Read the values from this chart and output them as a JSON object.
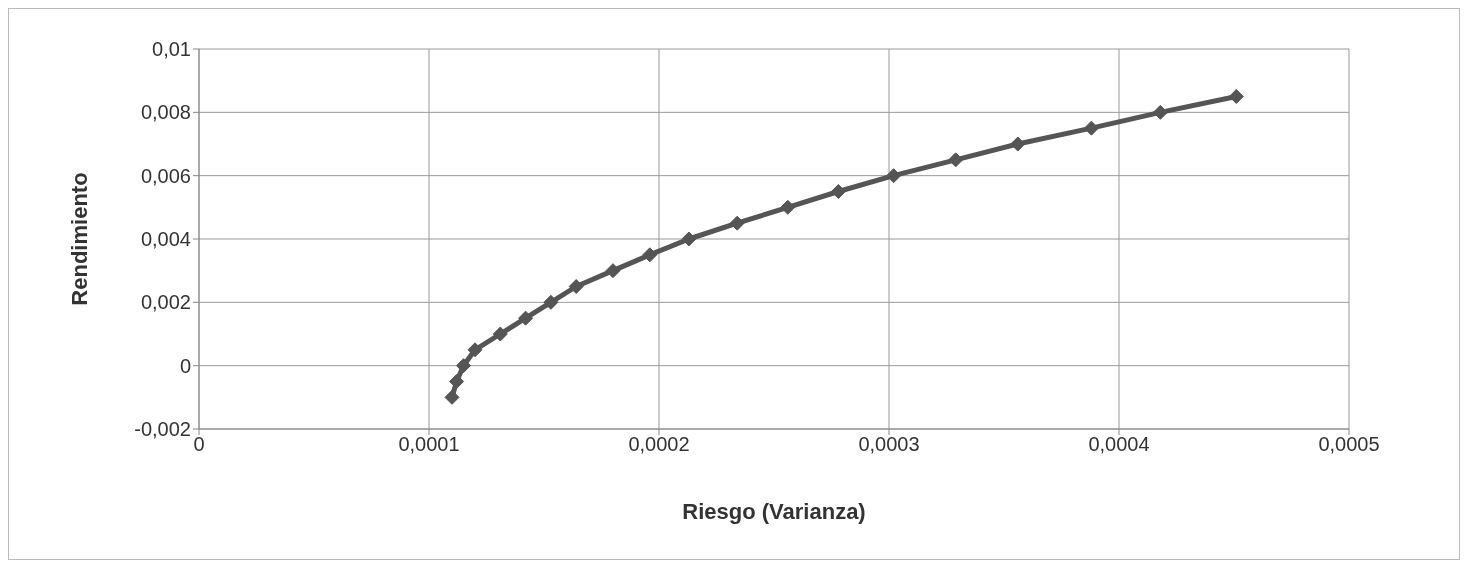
{
  "chart_data": {
    "type": "line",
    "xlabel": "Riesgo (Varianza)",
    "ylabel": "Rendimiento",
    "x": [
      0.00011,
      0.000112,
      0.000115,
      0.00012,
      0.000131,
      0.000142,
      0.000153,
      0.000164,
      0.00018,
      0.000196,
      0.000213,
      0.000234,
      0.000256,
      0.000278,
      0.000302,
      0.000329,
      0.000356,
      0.000388,
      0.000418,
      0.000451
    ],
    "series": [
      {
        "color": "#555555",
        "values": [
          -0.001,
          -0.0005,
          0,
          0.0005,
          0.001,
          0.0015,
          0.002,
          0.0025,
          0.003,
          0.0035,
          0.004,
          0.0045,
          0.005,
          0.0055,
          0.006,
          0.0065,
          0.007,
          0.0075,
          0.008,
          0.0085
        ]
      }
    ],
    "xlim": [
      0,
      0.0005
    ],
    "xticks": [
      {
        "value": 0,
        "label": "0"
      },
      {
        "value": 0.0001,
        "label": "0,0001"
      },
      {
        "value": 0.0002,
        "label": "0,0002"
      },
      {
        "value": 0.0003,
        "label": "0,0003"
      },
      {
        "value": 0.0004,
        "label": "0,0004"
      },
      {
        "value": 0.0005,
        "label": "0,0005"
      }
    ],
    "ylim": [
      -0.002,
      0.01
    ],
    "yticks": [
      {
        "value": -0.002,
        "label": "-0,002"
      },
      {
        "value": 0,
        "label": "0"
      },
      {
        "value": 0.002,
        "label": "0,002"
      },
      {
        "value": 0.004,
        "label": "0,004"
      },
      {
        "value": 0.006,
        "label": "0,006"
      },
      {
        "value": 0.008,
        "label": "0,008"
      },
      {
        "value": 0.01,
        "label": "0,01"
      }
    ],
    "grid": true,
    "marker": "diamond",
    "line_style": "solid"
  }
}
